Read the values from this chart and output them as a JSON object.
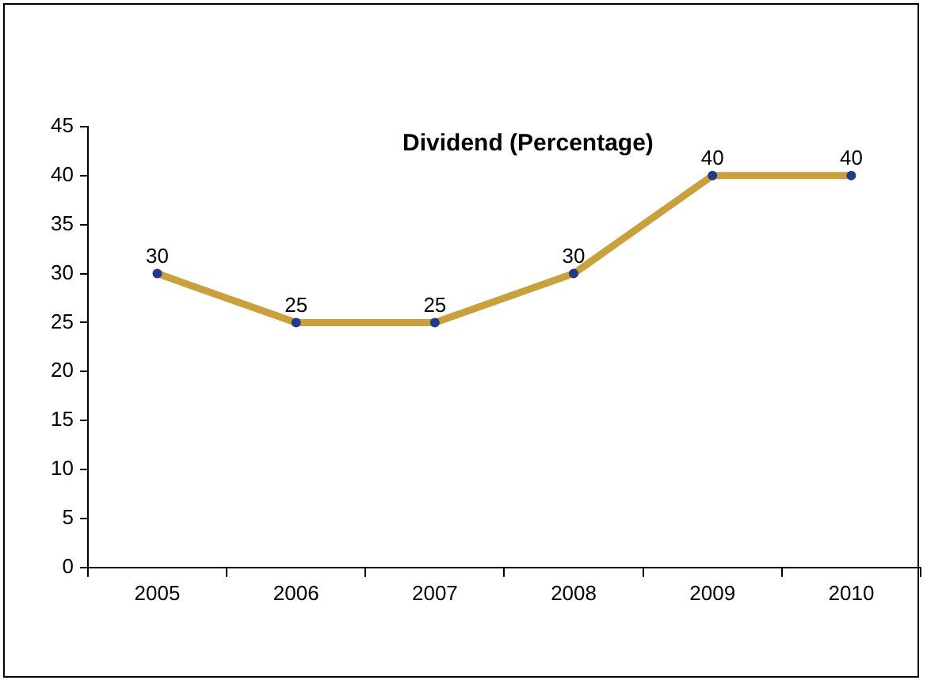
{
  "chart_data": {
    "type": "line",
    "title": "Dividend (Percentage)",
    "categories": [
      "2005",
      "2006",
      "2007",
      "2008",
      "2009",
      "2010"
    ],
    "series": [
      {
        "color": "#c9a03c",
        "values": [
          30,
          25,
          25,
          30,
          40,
          40
        ]
      }
    ],
    "ylim": [
      0,
      45
    ],
    "yticks": [
      0,
      5,
      10,
      15,
      20,
      25,
      30,
      35,
      40,
      45
    ],
    "grid": false,
    "legend": false,
    "marker": "circle",
    "line_style": "solid",
    "data_labels": true
  }
}
